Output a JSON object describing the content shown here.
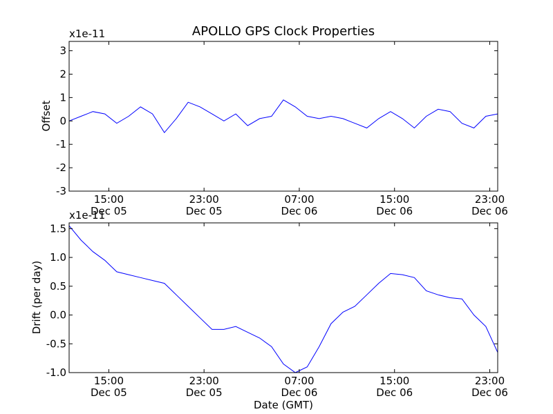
{
  "title": "APOLLO GPS Clock Properties",
  "colors": {
    "line": "#0000ff",
    "axes": "#000000",
    "background": "#ffffff"
  },
  "chart_data": [
    {
      "type": "line",
      "name": "offset",
      "ylabel": "Offset",
      "scale_label": "x1e-11",
      "ylim": [
        -3,
        3.4
      ],
      "yticks": [
        -3,
        -2,
        -1,
        0,
        1,
        2,
        3
      ],
      "ytick_labels": [
        "-3",
        "-2",
        "-1",
        "0",
        "1",
        "2",
        "3"
      ],
      "xlim": [
        "2012-12-05T11:40",
        "2012-12-06T23:40"
      ],
      "xticks": [
        "2012-12-05T15:00",
        "2012-12-05T23:00",
        "2012-12-06T07:00",
        "2012-12-06T15:00",
        "2012-12-06T23:00"
      ],
      "xtick_labels": [
        [
          "15:00",
          "Dec 05"
        ],
        [
          "23:00",
          "Dec 05"
        ],
        [
          "07:00",
          "Dec 06"
        ],
        [
          "15:00",
          "Dec 06"
        ],
        [
          "23:00",
          "Dec 06"
        ]
      ],
      "x": [
        "2012-12-05T11:40",
        "2012-12-05T12:40",
        "2012-12-05T13:40",
        "2012-12-05T14:40",
        "2012-12-05T15:40",
        "2012-12-05T16:40",
        "2012-12-05T17:40",
        "2012-12-05T18:40",
        "2012-12-05T19:40",
        "2012-12-05T20:40",
        "2012-12-05T21:40",
        "2012-12-05T22:40",
        "2012-12-05T23:40",
        "2012-12-06T00:40",
        "2012-12-06T01:40",
        "2012-12-06T02:40",
        "2012-12-06T03:40",
        "2012-12-06T04:40",
        "2012-12-06T05:40",
        "2012-12-06T06:40",
        "2012-12-06T07:40",
        "2012-12-06T08:40",
        "2012-12-06T09:40",
        "2012-12-06T10:40",
        "2012-12-06T11:40",
        "2012-12-06T12:40",
        "2012-12-06T13:40",
        "2012-12-06T14:40",
        "2012-12-06T15:40",
        "2012-12-06T16:40",
        "2012-12-06T17:40",
        "2012-12-06T18:40",
        "2012-12-06T19:40",
        "2012-12-06T20:40",
        "2012-12-06T21:40",
        "2012-12-06T22:40",
        "2012-12-06T23:40"
      ],
      "y": [
        0.0,
        0.2,
        0.4,
        0.3,
        -0.1,
        0.2,
        0.6,
        0.3,
        -0.5,
        0.1,
        0.8,
        0.6,
        0.3,
        0.0,
        0.3,
        -0.2,
        0.1,
        0.2,
        0.9,
        0.6,
        0.2,
        0.1,
        0.2,
        0.1,
        -0.1,
        -0.3,
        0.1,
        0.4,
        0.1,
        -0.3,
        0.2,
        0.5,
        0.4,
        -0.1,
        -0.3,
        0.2,
        0.3
      ]
    },
    {
      "type": "line",
      "name": "drift",
      "ylabel": "Drift (per day)",
      "scale_label": "x1e-11",
      "xlabel": "Date (GMT)",
      "ylim": [
        -1.0,
        1.6
      ],
      "yticks": [
        -1.0,
        -0.5,
        0.0,
        0.5,
        1.0,
        1.5
      ],
      "ytick_labels": [
        "-1.0",
        "-0.5",
        "0.0",
        "0.5",
        "1.0",
        "1.5"
      ],
      "xlim": [
        "2012-12-05T11:40",
        "2012-12-06T23:40"
      ],
      "xticks": [
        "2012-12-05T15:00",
        "2012-12-05T23:00",
        "2012-12-06T07:00",
        "2012-12-06T15:00",
        "2012-12-06T23:00"
      ],
      "xtick_labels": [
        [
          "15:00",
          "Dec 05"
        ],
        [
          "23:00",
          "Dec 05"
        ],
        [
          "07:00",
          "Dec 06"
        ],
        [
          "15:00",
          "Dec 06"
        ],
        [
          "23:00",
          "Dec 06"
        ]
      ],
      "x": [
        "2012-12-05T11:40",
        "2012-12-05T12:40",
        "2012-12-05T13:40",
        "2012-12-05T14:40",
        "2012-12-05T15:40",
        "2012-12-05T16:40",
        "2012-12-05T17:40",
        "2012-12-05T18:40",
        "2012-12-05T19:40",
        "2012-12-05T20:40",
        "2012-12-05T21:40",
        "2012-12-05T22:40",
        "2012-12-05T23:40",
        "2012-12-06T00:40",
        "2012-12-06T01:40",
        "2012-12-06T02:40",
        "2012-12-06T03:40",
        "2012-12-06T04:40",
        "2012-12-06T05:40",
        "2012-12-06T06:40",
        "2012-12-06T07:40",
        "2012-12-06T08:40",
        "2012-12-06T09:40",
        "2012-12-06T10:40",
        "2012-12-06T11:40",
        "2012-12-06T12:40",
        "2012-12-06T13:40",
        "2012-12-06T14:40",
        "2012-12-06T15:40",
        "2012-12-06T16:40",
        "2012-12-06T17:40",
        "2012-12-06T18:40",
        "2012-12-06T19:40",
        "2012-12-06T20:40",
        "2012-12-06T21:40",
        "2012-12-06T22:40",
        "2012-12-06T23:40"
      ],
      "y": [
        1.55,
        1.3,
        1.1,
        0.95,
        0.75,
        0.7,
        0.65,
        0.6,
        0.55,
        0.35,
        0.15,
        -0.05,
        -0.25,
        -0.25,
        -0.2,
        -0.3,
        -0.4,
        -0.55,
        -0.85,
        -1.0,
        -0.9,
        -0.55,
        -0.15,
        0.05,
        0.15,
        0.35,
        0.55,
        0.72,
        0.7,
        0.65,
        0.42,
        0.35,
        0.3,
        0.28,
        0.0,
        -0.2,
        -0.65
      ]
    }
  ]
}
